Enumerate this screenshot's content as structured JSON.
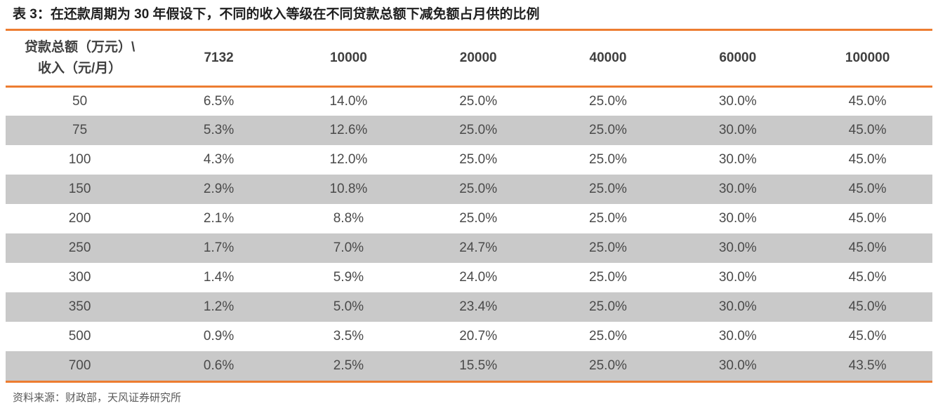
{
  "title": "表 3：在还款周期为 30 年假设下，不同的收入等级在不同贷款总额下减免额占月供的比例",
  "table": {
    "corner_header": {
      "line1": "贷款总额（万元）\\",
      "line2": "收入（元/月）"
    },
    "columns": [
      "7132",
      "10000",
      "20000",
      "40000",
      "60000",
      "100000"
    ],
    "rows": [
      {
        "label": "50",
        "values": [
          "6.5%",
          "14.0%",
          "25.0%",
          "25.0%",
          "30.0%",
          "45.0%"
        ]
      },
      {
        "label": "75",
        "values": [
          "5.3%",
          "12.6%",
          "25.0%",
          "25.0%",
          "30.0%",
          "45.0%"
        ]
      },
      {
        "label": "100",
        "values": [
          "4.3%",
          "12.0%",
          "25.0%",
          "25.0%",
          "30.0%",
          "45.0%"
        ]
      },
      {
        "label": "150",
        "values": [
          "2.9%",
          "10.8%",
          "25.0%",
          "25.0%",
          "30.0%",
          "45.0%"
        ]
      },
      {
        "label": "200",
        "values": [
          "2.1%",
          "8.8%",
          "25.0%",
          "25.0%",
          "30.0%",
          "45.0%"
        ]
      },
      {
        "label": "250",
        "values": [
          "1.7%",
          "7.0%",
          "24.7%",
          "25.0%",
          "30.0%",
          "45.0%"
        ]
      },
      {
        "label": "300",
        "values": [
          "1.4%",
          "5.9%",
          "24.0%",
          "25.0%",
          "30.0%",
          "45.0%"
        ]
      },
      {
        "label": "350",
        "values": [
          "1.2%",
          "5.0%",
          "23.4%",
          "25.0%",
          "30.0%",
          "45.0%"
        ]
      },
      {
        "label": "500",
        "values": [
          "0.9%",
          "3.5%",
          "20.7%",
          "25.0%",
          "30.0%",
          "45.0%"
        ]
      },
      {
        "label": "700",
        "values": [
          "0.6%",
          "2.5%",
          "15.5%",
          "25.0%",
          "30.0%",
          "43.5%"
        ]
      }
    ]
  },
  "footer": {
    "source": "资料来源：财政部，天风证券研究所"
  },
  "colors": {
    "accent_orange": "#ED7D31",
    "row_alt_gray": "#C9C9C9",
    "title_text": "#1f1f1f",
    "body_text": "#4a4a4a"
  }
}
